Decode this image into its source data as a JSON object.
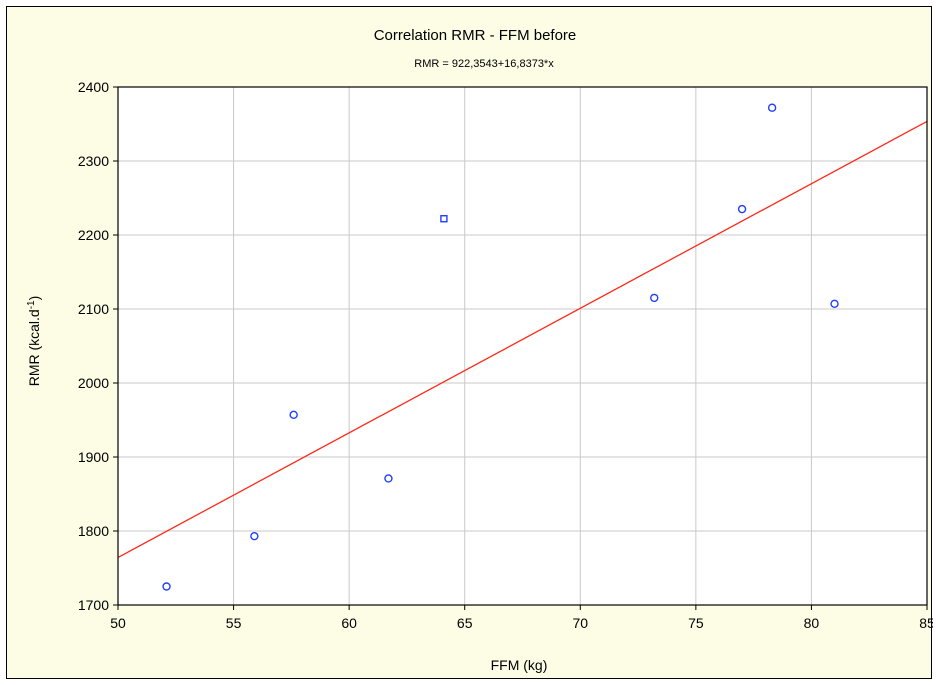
{
  "chart_data": {
    "type": "scatter",
    "title": "Correlation RMR - FFM before",
    "subtitle": "RMR = 922,3543+16,8373*x",
    "xlabel": "FFM (kg)",
    "ylabel_base": "RMR (kcal.d",
    "ylabel_sup": "-1",
    "ylabel_end": ")",
    "xlim": [
      50,
      85
    ],
    "ylim": [
      1700,
      2400
    ],
    "xticks": [
      50,
      55,
      60,
      65,
      70,
      75,
      80,
      85
    ],
    "yticks": [
      1700,
      1800,
      1900,
      2000,
      2100,
      2200,
      2300,
      2400
    ],
    "grid": true,
    "regression": {
      "intercept": 922.3543,
      "slope": 16.8373
    },
    "points": [
      {
        "x": 52.1,
        "y": 1725,
        "marker": "circle"
      },
      {
        "x": 55.9,
        "y": 1793,
        "marker": "circle"
      },
      {
        "x": 57.6,
        "y": 1957,
        "marker": "circle"
      },
      {
        "x": 61.7,
        "y": 1871,
        "marker": "circle"
      },
      {
        "x": 64.1,
        "y": 2222,
        "marker": "square"
      },
      {
        "x": 73.2,
        "y": 2115,
        "marker": "circle"
      },
      {
        "x": 77.0,
        "y": 2235,
        "marker": "circle"
      },
      {
        "x": 78.3,
        "y": 2372,
        "marker": "circle"
      },
      {
        "x": 81.0,
        "y": 2107,
        "marker": "circle"
      }
    ],
    "colors": {
      "points": "#1f3fff",
      "line": "#ff2a1a",
      "grid": "#c9c9c9",
      "background": "#fdfde6",
      "plot": "#ffffff"
    }
  }
}
